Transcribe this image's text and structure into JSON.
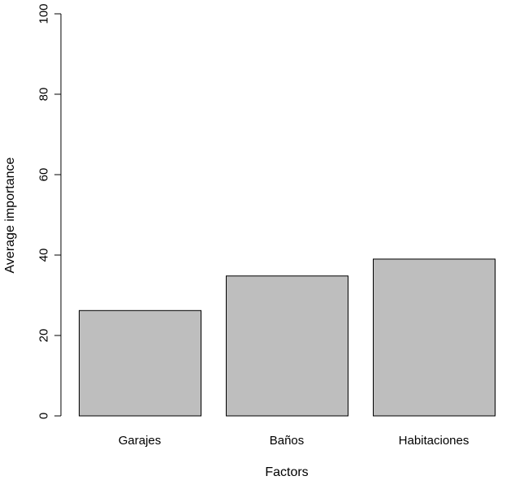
{
  "chart_data": {
    "type": "bar",
    "categories": [
      "Garajes",
      "Baños",
      "Habitaciones"
    ],
    "values": [
      26.2,
      34.8,
      39.0
    ],
    "title": "",
    "xlabel": "Factors",
    "ylabel": "Average importance",
    "ylim": [
      0,
      100
    ],
    "yticks": [
      0,
      20,
      40,
      60,
      80,
      100
    ],
    "bar_color": "#bebebe",
    "bar_stroke": "#000000",
    "grid": false,
    "legend": "none"
  }
}
